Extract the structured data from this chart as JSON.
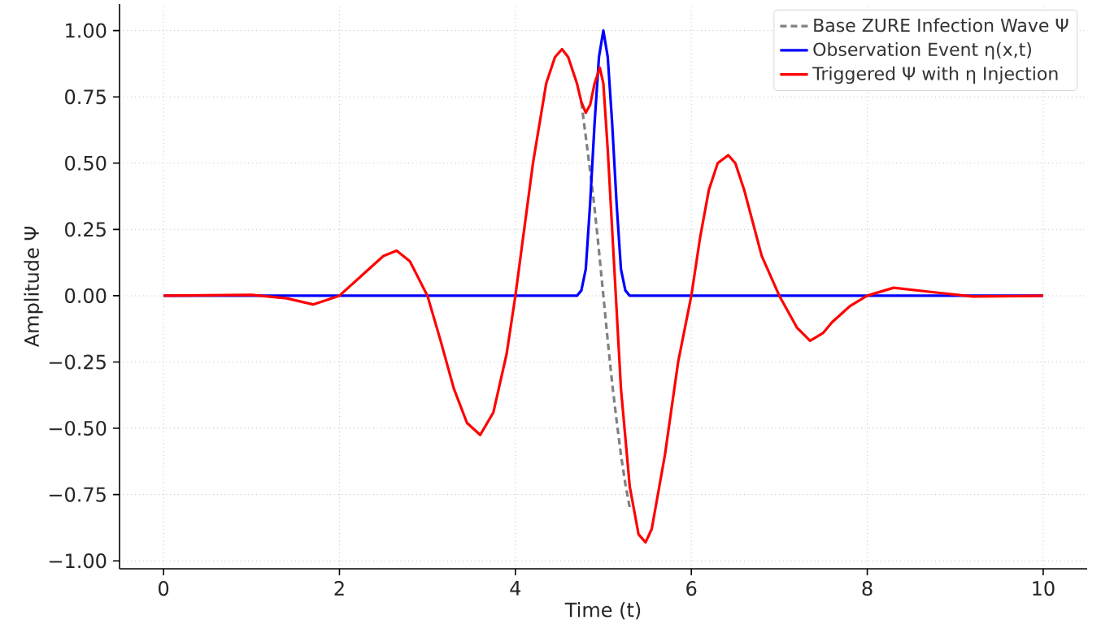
{
  "chart_data": {
    "type": "line",
    "xlabel": "Time (t)",
    "ylabel": "Amplitude Ψ",
    "xlim": [
      -0.5,
      10.5
    ],
    "ylim": [
      -1.03,
      1.1
    ],
    "xticks": [
      0,
      2,
      4,
      6,
      8,
      10
    ],
    "yticks": [
      {
        "value": -1,
        "label": "−1.00"
      },
      {
        "value": -0.75,
        "label": "−0.75"
      },
      {
        "value": -0.5,
        "label": "−0.50"
      },
      {
        "value": -0.25,
        "label": "−0.25"
      },
      {
        "value": 0,
        "label": "0.00"
      },
      {
        "value": 0.25,
        "label": "0.25"
      },
      {
        "value": 0.5,
        "label": "0.50"
      },
      {
        "value": 0.75,
        "label": "0.75"
      },
      {
        "value": 1,
        "label": "1.00"
      }
    ],
    "grid": true,
    "legend": "top right",
    "marker": "none",
    "series": [
      {
        "name": "Base ZURE Infection Wave Ψ",
        "color": "#808080",
        "line_style": "dashed",
        "x": [
          4.75,
          4.8,
          4.85,
          4.9,
          4.95,
          5.0,
          5.05,
          5.1,
          5.15,
          5.2,
          5.25,
          5.3
        ],
        "values": [
          0.73,
          0.6,
          0.47,
          0.33,
          0.17,
          0,
          -0.17,
          -0.33,
          -0.47,
          -0.6,
          -0.71,
          -0.8
        ]
      },
      {
        "name": "Observation Event η(x,t)",
        "color": "#0000ff",
        "line_style": "solid",
        "x": [
          0,
          4.7,
          4.75,
          4.8,
          4.85,
          4.9,
          4.95,
          5.0,
          5.05,
          5.1,
          5.15,
          5.2,
          5.25,
          5.3,
          10
        ],
        "values": [
          0,
          0,
          0.02,
          0.1,
          0.35,
          0.65,
          0.9,
          1.0,
          0.9,
          0.65,
          0.35,
          0.1,
          0.02,
          0,
          0
        ]
      },
      {
        "name": "Triggered Ψ with η Injection",
        "color": "#ff0000",
        "line_style": "solid",
        "x": [
          0,
          1,
          1.4,
          1.7,
          2,
          2.3,
          2.5,
          2.65,
          2.8,
          3.0,
          3.15,
          3.3,
          3.45,
          3.6,
          3.75,
          3.9,
          4.0,
          4.1,
          4.2,
          4.35,
          4.45,
          4.53,
          4.6,
          4.7,
          4.75,
          4.8,
          4.85,
          4.9,
          4.96,
          5.0,
          5.05,
          5.1,
          5.15,
          5.2,
          5.3,
          5.4,
          5.48,
          5.55,
          5.7,
          5.85,
          6.0,
          6.1,
          6.2,
          6.3,
          6.42,
          6.5,
          6.6,
          6.8,
          7.0,
          7.2,
          7.35,
          7.5,
          7.6,
          7.8,
          8.0,
          8.3,
          8.7,
          9.2,
          10
        ],
        "values": [
          0,
          0.003,
          -0.01,
          -0.033,
          0,
          0.09,
          0.15,
          0.17,
          0.13,
          0,
          -0.17,
          -0.35,
          -0.48,
          -0.525,
          -0.44,
          -0.22,
          0,
          0.25,
          0.5,
          0.8,
          0.9,
          0.93,
          0.9,
          0.8,
          0.73,
          0.69,
          0.72,
          0.8,
          0.86,
          0.8,
          0.55,
          0.25,
          -0.05,
          -0.35,
          -0.72,
          -0.9,
          -0.93,
          -0.88,
          -0.6,
          -0.25,
          0,
          0.22,
          0.4,
          0.5,
          0.53,
          0.5,
          0.4,
          0.15,
          0,
          -0.12,
          -0.17,
          -0.14,
          -0.1,
          -0.04,
          0,
          0.03,
          0.015,
          -0.003,
          0
        ]
      }
    ]
  }
}
